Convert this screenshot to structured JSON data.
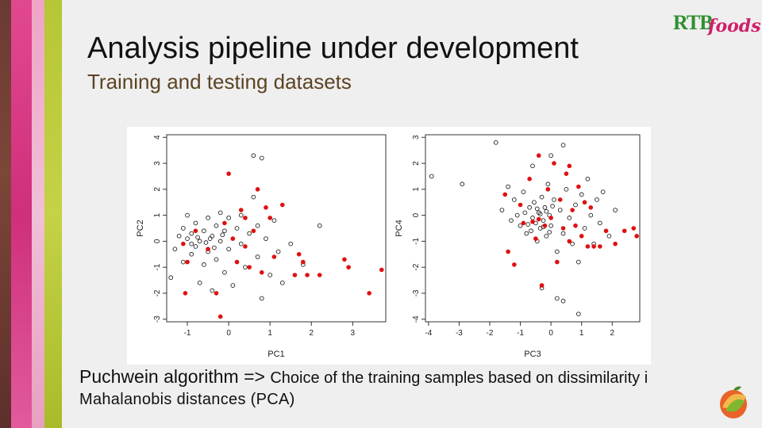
{
  "slide": {
    "title": "Analysis pipeline under development",
    "subtitle": "Training and testing datasets",
    "caption_line1_a": "Puchwein algorithm => ",
    "caption_line1_b": "Choice of the training samples based on dissimilarity i",
    "caption_line2": "Mahalanobis distances (PCA)",
    "logo_rtb": "RTB",
    "logo_foods": "foods"
  },
  "colors": {
    "selected": "#e01010",
    "unselected": "#222222",
    "frame": "#333333"
  },
  "chart_data": [
    {
      "type": "scatter",
      "title": "",
      "xlabel": "PC1",
      "ylabel": "PC2",
      "xlim": [
        -1.5,
        3.8
      ],
      "ylim": [
        -3.1,
        4.1
      ],
      "xticks": [
        "-1",
        "0",
        "1",
        "2",
        "3"
      ],
      "yticks": [
        "-3",
        "-2",
        "-1",
        "0",
        "1",
        "2",
        "3",
        "4"
      ],
      "series": [
        {
          "role": "black",
          "points": [
            [
              -1.4,
              -1.4
            ],
            [
              -1.3,
              -0.3
            ],
            [
              -1.2,
              0.2
            ],
            [
              -1.1,
              0.5
            ],
            [
              -1.1,
              -0.8
            ],
            [
              -1.0,
              1.0
            ],
            [
              -1.0,
              0.1
            ],
            [
              -0.9,
              -0.5
            ],
            [
              -0.9,
              0.3
            ],
            [
              -0.8,
              0.7
            ],
            [
              -0.8,
              -0.2
            ],
            [
              -0.7,
              0.0
            ],
            [
              -0.7,
              -1.6
            ],
            [
              -0.6,
              0.4
            ],
            [
              -0.6,
              -0.9
            ],
            [
              -0.5,
              0.9
            ],
            [
              -0.5,
              -0.4
            ],
            [
              -0.4,
              0.2
            ],
            [
              -0.4,
              -1.9
            ],
            [
              -0.3,
              0.6
            ],
            [
              -0.3,
              -0.7
            ],
            [
              -0.2,
              1.1
            ],
            [
              -0.2,
              0.0
            ],
            [
              -0.1,
              -1.2
            ],
            [
              -0.1,
              0.4
            ],
            [
              0.0,
              0.9
            ],
            [
              0.0,
              -0.3
            ],
            [
              0.1,
              -1.7
            ],
            [
              0.2,
              0.5
            ],
            [
              0.3,
              1.0
            ],
            [
              0.3,
              -0.1
            ],
            [
              0.4,
              -1.0
            ],
            [
              0.5,
              0.3
            ],
            [
              0.6,
              1.7
            ],
            [
              0.7,
              -0.6
            ],
            [
              0.7,
              0.6
            ],
            [
              0.8,
              -2.2
            ],
            [
              0.9,
              0.1
            ],
            [
              1.0,
              -1.3
            ],
            [
              1.1,
              0.8
            ],
            [
              1.2,
              -0.4
            ],
            [
              1.3,
              -1.6
            ],
            [
              1.5,
              -0.1
            ],
            [
              1.8,
              -0.9
            ],
            [
              2.2,
              0.6
            ],
            [
              0.6,
              3.3
            ],
            [
              0.8,
              3.2
            ],
            [
              -0.9,
              -0.1
            ],
            [
              -0.75,
              0.15
            ],
            [
              -0.55,
              -0.05
            ],
            [
              -0.45,
              0.1
            ],
            [
              -0.35,
              -0.25
            ],
            [
              -0.15,
              0.25
            ]
          ]
        },
        {
          "role": "red",
          "points": [
            [
              -1.1,
              -0.1
            ],
            [
              -1.0,
              -0.8
            ],
            [
              -0.8,
              0.4
            ],
            [
              -0.5,
              -0.3
            ],
            [
              -0.3,
              -2.0
            ],
            [
              -0.1,
              0.7
            ],
            [
              0.0,
              2.6
            ],
            [
              0.2,
              -0.8
            ],
            [
              0.3,
              1.2
            ],
            [
              0.4,
              -0.2
            ],
            [
              0.5,
              -1.0
            ],
            [
              0.6,
              0.4
            ],
            [
              0.7,
              2.0
            ],
            [
              0.8,
              -1.2
            ],
            [
              0.9,
              1.3
            ],
            [
              1.0,
              0.9
            ],
            [
              1.1,
              -0.6
            ],
            [
              1.3,
              1.4
            ],
            [
              1.6,
              -1.3
            ],
            [
              1.7,
              -0.5
            ],
            [
              1.8,
              -0.8
            ],
            [
              1.9,
              -1.3
            ],
            [
              2.2,
              -1.3
            ],
            [
              2.8,
              -0.7
            ],
            [
              2.9,
              -1.0
            ],
            [
              3.4,
              -2.0
            ],
            [
              3.7,
              -1.1
            ],
            [
              -1.05,
              -2.0
            ],
            [
              -0.2,
              -2.9
            ],
            [
              0.4,
              0.9
            ],
            [
              0.1,
              0.1
            ]
          ]
        }
      ]
    },
    {
      "type": "scatter",
      "title": "",
      "xlabel": "PC3",
      "ylabel": "PC4",
      "xlim": [
        -4.1,
        2.9
      ],
      "ylim": [
        -4.1,
        3.1
      ],
      "xticks": [
        "-4",
        "-3",
        "-2",
        "-1",
        "0",
        "1",
        "2"
      ],
      "yticks": [
        "-4",
        "-3",
        "-2",
        "-1",
        "0",
        "1",
        "2",
        "3"
      ],
      "series": [
        {
          "role": "black",
          "points": [
            [
              -3.9,
              1.5
            ],
            [
              -2.9,
              1.2
            ],
            [
              -1.8,
              2.8
            ],
            [
              -1.6,
              0.2
            ],
            [
              -1.4,
              1.1
            ],
            [
              -1.3,
              -0.2
            ],
            [
              -1.2,
              0.6
            ],
            [
              -1.1,
              0.0
            ],
            [
              -1.0,
              -0.4
            ],
            [
              -0.9,
              0.9
            ],
            [
              -0.8,
              -0.7
            ],
            [
              -0.7,
              0.3
            ],
            [
              -0.6,
              -0.1
            ],
            [
              -0.55,
              0.5
            ],
            [
              -0.5,
              -0.3
            ],
            [
              -0.45,
              -1.0
            ],
            [
              -0.4,
              0.1
            ],
            [
              -0.35,
              -0.5
            ],
            [
              -0.3,
              0.7
            ],
            [
              -0.25,
              -0.2
            ],
            [
              -0.2,
              0.3
            ],
            [
              -0.15,
              -0.8
            ],
            [
              -0.1,
              1.2
            ],
            [
              -0.05,
              0.0
            ],
            [
              0.0,
              -0.4
            ],
            [
              0.1,
              0.6
            ],
            [
              0.2,
              -1.4
            ],
            [
              0.3,
              0.2
            ],
            [
              0.4,
              -0.7
            ],
            [
              0.5,
              1.0
            ],
            [
              0.6,
              -0.1
            ],
            [
              0.7,
              -1.1
            ],
            [
              0.8,
              0.4
            ],
            [
              0.9,
              -1.8
            ],
            [
              1.0,
              0.8
            ],
            [
              1.1,
              -0.5
            ],
            [
              1.2,
              1.4
            ],
            [
              1.3,
              0.0
            ],
            [
              1.4,
              -1.1
            ],
            [
              1.5,
              0.6
            ],
            [
              1.6,
              -0.3
            ],
            [
              1.7,
              0.9
            ],
            [
              1.9,
              -0.8
            ],
            [
              2.1,
              0.2
            ],
            [
              -0.3,
              -2.8
            ],
            [
              0.2,
              -3.2
            ],
            [
              0.4,
              -3.3
            ],
            [
              0.9,
              -3.8
            ],
            [
              0.0,
              2.3
            ],
            [
              -0.6,
              1.9
            ],
            [
              0.4,
              2.7
            ],
            [
              -0.85,
              0.1
            ],
            [
              -0.75,
              -0.35
            ],
            [
              -0.65,
              -0.6
            ],
            [
              -0.45,
              0.25
            ],
            [
              -0.35,
              0.05
            ],
            [
              -0.25,
              -0.45
            ],
            [
              -0.15,
              0.15
            ],
            [
              -0.05,
              -0.65
            ],
            [
              0.05,
              0.35
            ]
          ]
        },
        {
          "role": "red",
          "points": [
            [
              -1.5,
              0.8
            ],
            [
              -1.4,
              -1.4
            ],
            [
              -1.2,
              -1.9
            ],
            [
              -1.0,
              0.4
            ],
            [
              -0.9,
              -0.3
            ],
            [
              -0.7,
              1.4
            ],
            [
              -0.5,
              -0.9
            ],
            [
              -0.4,
              2.3
            ],
            [
              -0.3,
              -2.7
            ],
            [
              -0.2,
              -0.4
            ],
            [
              -0.1,
              1.0
            ],
            [
              0.0,
              -0.1
            ],
            [
              0.1,
              2.0
            ],
            [
              0.2,
              -1.8
            ],
            [
              0.3,
              0.6
            ],
            [
              0.4,
              -0.5
            ],
            [
              0.5,
              1.6
            ],
            [
              0.6,
              -1.0
            ],
            [
              0.7,
              0.2
            ],
            [
              0.8,
              -0.4
            ],
            [
              0.9,
              1.1
            ],
            [
              1.0,
              -0.8
            ],
            [
              1.1,
              0.5
            ],
            [
              1.2,
              -1.2
            ],
            [
              1.3,
              0.3
            ],
            [
              1.4,
              -1.2
            ],
            [
              1.6,
              -1.2
            ],
            [
              1.8,
              -0.6
            ],
            [
              2.1,
              -1.1
            ],
            [
              2.4,
              -0.6
            ],
            [
              2.7,
              -0.5
            ],
            [
              2.8,
              -0.8
            ],
            [
              -0.6,
              -0.25
            ],
            [
              -0.4,
              -0.15
            ],
            [
              0.6,
              1.9
            ]
          ]
        }
      ]
    }
  ]
}
